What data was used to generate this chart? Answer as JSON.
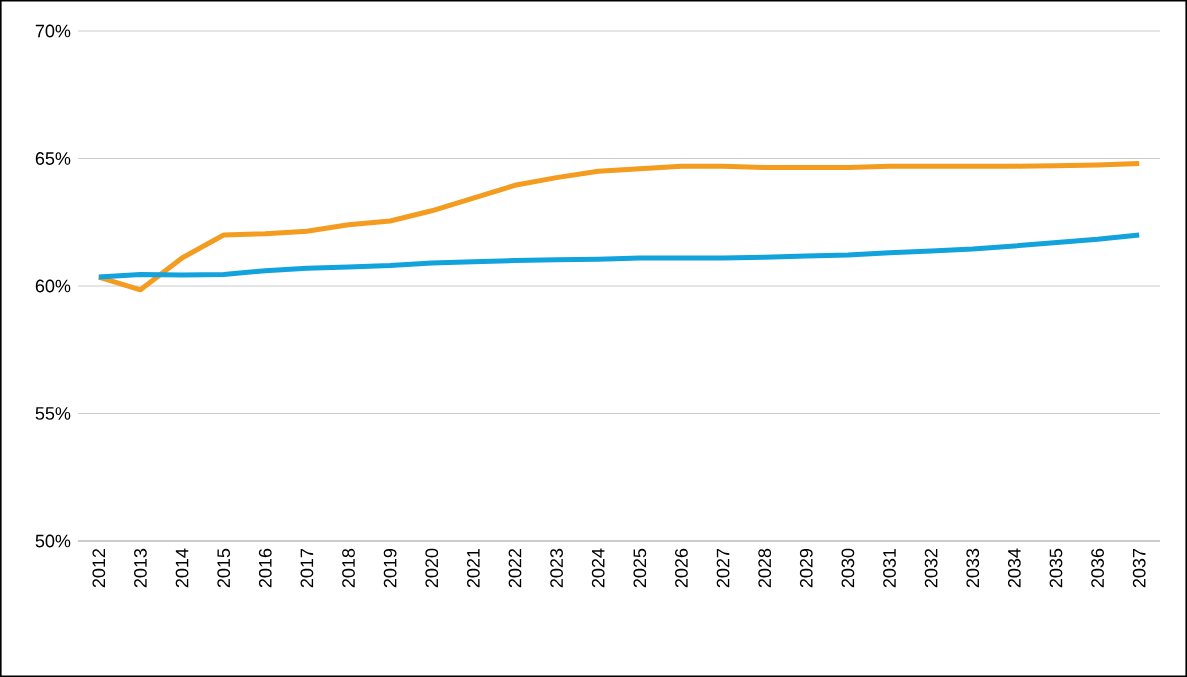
{
  "chart_data": {
    "type": "line",
    "categories": [
      "2012",
      "2013",
      "2014",
      "2015",
      "2016",
      "2017",
      "2018",
      "2019",
      "2020",
      "2021",
      "2022",
      "2023",
      "2024",
      "2025",
      "2026",
      "2027",
      "2028",
      "2029",
      "2030",
      "2031",
      "2032",
      "2033",
      "2034",
      "2035",
      "2036",
      "2037"
    ],
    "series": [
      {
        "color": "#f39c1f",
        "values": [
          60.35,
          59.85,
          61.1,
          62.0,
          62.05,
          62.15,
          62.4,
          62.55,
          62.95,
          63.45,
          63.95,
          64.25,
          64.5,
          64.6,
          64.7,
          64.7,
          64.65,
          64.65,
          64.65,
          64.7,
          64.7,
          64.7,
          64.7,
          64.72,
          64.75,
          64.8
        ]
      },
      {
        "color": "#12a2dc",
        "values": [
          60.35,
          60.45,
          60.43,
          60.45,
          60.6,
          60.7,
          60.75,
          60.8,
          60.9,
          60.95,
          61.0,
          61.03,
          61.05,
          61.1,
          61.1,
          61.1,
          61.13,
          61.18,
          61.22,
          61.3,
          61.37,
          61.45,
          61.57,
          61.7,
          61.83,
          62.0
        ]
      }
    ],
    "ylim": [
      50,
      70
    ],
    "yticks": [
      {
        "value": 50,
        "label": "50%"
      },
      {
        "value": 55,
        "label": "55%"
      },
      {
        "value": 60,
        "label": "60%"
      },
      {
        "value": 65,
        "label": "65%"
      },
      {
        "value": 70,
        "label": "70%"
      }
    ],
    "grid": "y"
  }
}
